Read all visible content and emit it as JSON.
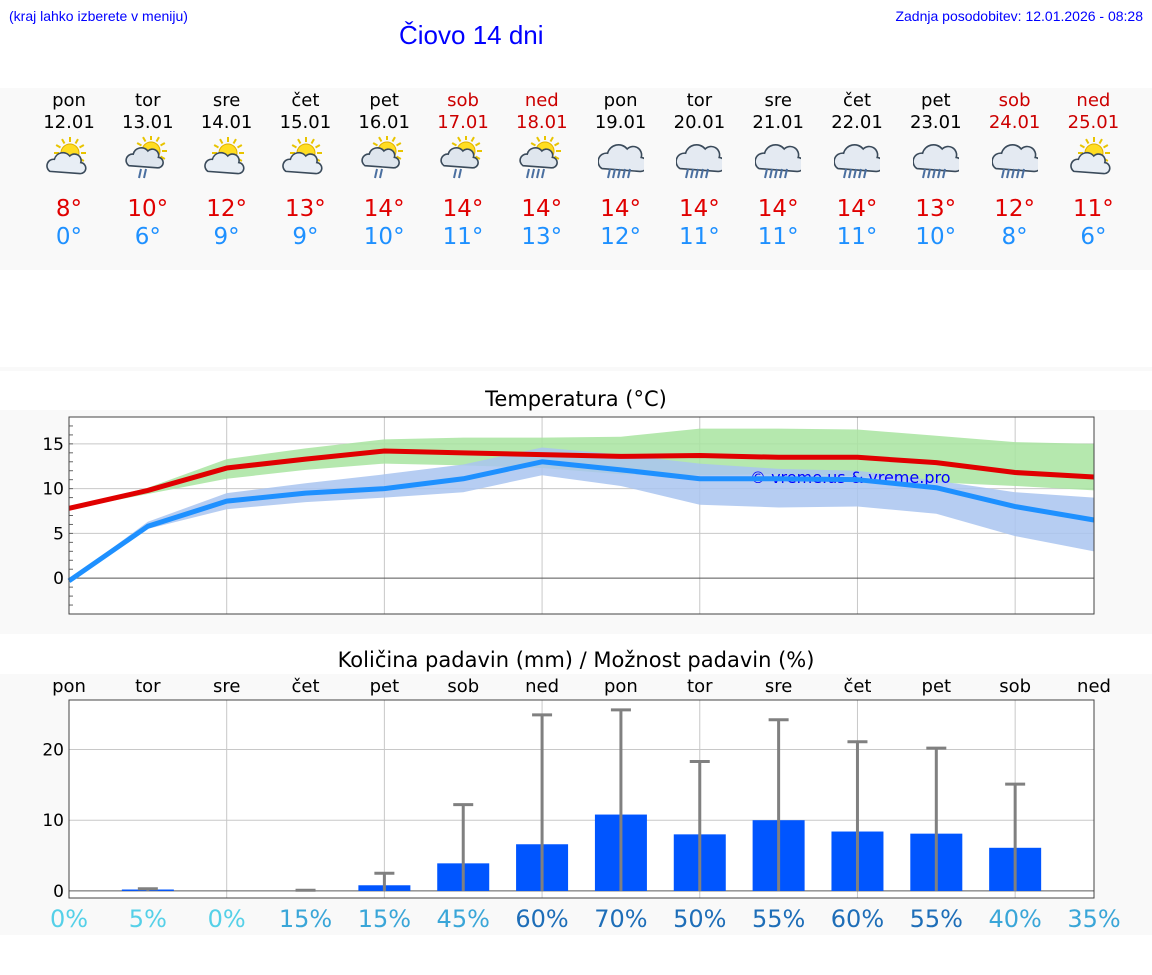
{
  "header": {
    "hint": "(kraj lahko izberete v meniju)",
    "updated": "Zadnja posodobitev: 12.01.2026 - 08:28",
    "title": "Čiovo 14 dni"
  },
  "forecast": {
    "days": [
      {
        "name": "pon",
        "date": "12.01",
        "weekend": false,
        "icon": "sun-cloud-icon",
        "tmax": "8°",
        "tmin": "0°"
      },
      {
        "name": "tor",
        "date": "13.01",
        "weekend": false,
        "icon": "sun-cloud-rain-icon",
        "tmax": "10°",
        "tmin": "6°"
      },
      {
        "name": "sre",
        "date": "14.01",
        "weekend": false,
        "icon": "sun-cloud-icon",
        "tmax": "12°",
        "tmin": "9°"
      },
      {
        "name": "čet",
        "date": "15.01",
        "weekend": false,
        "icon": "sun-cloud-icon",
        "tmax": "13°",
        "tmin": "9°"
      },
      {
        "name": "pet",
        "date": "16.01",
        "weekend": false,
        "icon": "sun-cloud-rain-icon",
        "tmax": "14°",
        "tmin": "10°"
      },
      {
        "name": "sob",
        "date": "17.01",
        "weekend": true,
        "icon": "sun-cloud-rain-icon",
        "tmax": "14°",
        "tmin": "11°"
      },
      {
        "name": "ned",
        "date": "18.01",
        "weekend": true,
        "icon": "sun-cloud-heavy-rain-icon",
        "tmax": "14°",
        "tmin": "13°"
      },
      {
        "name": "pon",
        "date": "19.01",
        "weekend": false,
        "icon": "cloud-rain-icon",
        "tmax": "14°",
        "tmin": "12°"
      },
      {
        "name": "tor",
        "date": "20.01",
        "weekend": false,
        "icon": "cloud-rain-icon",
        "tmax": "14°",
        "tmin": "11°"
      },
      {
        "name": "sre",
        "date": "21.01",
        "weekend": false,
        "icon": "cloud-rain-icon",
        "tmax": "14°",
        "tmin": "11°"
      },
      {
        "name": "čet",
        "date": "22.01",
        "weekend": false,
        "icon": "cloud-rain-icon",
        "tmax": "14°",
        "tmin": "11°"
      },
      {
        "name": "pet",
        "date": "23.01",
        "weekend": false,
        "icon": "cloud-rain-icon",
        "tmax": "13°",
        "tmin": "10°"
      },
      {
        "name": "sob",
        "date": "24.01",
        "weekend": true,
        "icon": "cloud-rain-icon",
        "tmax": "12°",
        "tmin": "8°"
      },
      {
        "name": "ned",
        "date": "25.01",
        "weekend": true,
        "icon": "sun-cloud-icon",
        "tmax": "11°",
        "tmin": "6°"
      }
    ]
  },
  "colors": {
    "max": "#e00000",
    "min": "#1e90ff",
    "weekend": "#cc0000",
    "title": "#0000ff",
    "maxBand": "#a8e4a0",
    "minBand": "#a9c4f0",
    "bar": "#0055ff",
    "errbar": "#808080"
  },
  "chart_data": [
    {
      "type": "line",
      "title": "Temperatura (°C)",
      "watermark": "© vreme.us & vreme.pro",
      "x": [
        0,
        1,
        2,
        3,
        4,
        5,
        6,
        7,
        8,
        9,
        10,
        11,
        12,
        13
      ],
      "ylim": [
        -4,
        18
      ],
      "yticks": [
        0,
        5,
        10,
        15
      ],
      "grid": true,
      "series": [
        {
          "name": "max",
          "values": [
            7.8,
            9.8,
            12.3,
            13.3,
            14.2,
            14.0,
            13.8,
            13.6,
            13.7,
            13.5,
            13.5,
            12.9,
            11.8,
            11.3
          ],
          "band_upper": [
            7.9,
            10.1,
            13.3,
            14.5,
            15.5,
            15.7,
            15.7,
            15.8,
            16.7,
            16.7,
            16.6,
            15.9,
            15.2,
            15.0
          ],
          "band_lower": [
            7.7,
            9.4,
            11.1,
            12.1,
            12.8,
            12.6,
            12.3,
            11.6,
            11.5,
            11.6,
            11.4,
            10.7,
            10.3,
            9.8
          ]
        },
        {
          "name": "min",
          "values": [
            -0.3,
            5.8,
            8.6,
            9.5,
            10.0,
            11.1,
            13.0,
            12.1,
            11.1,
            11.1,
            11.0,
            10.1,
            8.0,
            6.5
          ],
          "band_upper": [
            -0.2,
            6.3,
            9.5,
            10.6,
            11.6,
            12.7,
            14.6,
            13.8,
            12.8,
            12.2,
            12.0,
            10.9,
            9.6,
            9.0
          ],
          "band_lower": [
            -0.4,
            5.5,
            7.7,
            8.5,
            9.0,
            9.6,
            11.5,
            10.3,
            8.2,
            7.9,
            8.0,
            7.2,
            4.7,
            3.0
          ]
        }
      ]
    },
    {
      "type": "bar",
      "title": "Količina padavin (mm) / Možnost padavin (%)",
      "categories": [
        "pon",
        "tor",
        "sre",
        "čet",
        "pet",
        "sob",
        "ned",
        "pon",
        "tor",
        "sre",
        "čet",
        "pet",
        "sob",
        "ned"
      ],
      "ylim": [
        -1,
        27
      ],
      "yticks": [
        0,
        10,
        20
      ],
      "grid": true,
      "values": [
        0.0,
        0.2,
        0.0,
        0.0,
        0.8,
        3.9,
        6.6,
        10.8,
        8.0,
        10.0,
        8.4,
        8.1,
        6.1,
        0.0
      ],
      "error_max": [
        0.0,
        0.3,
        0.0,
        0.1,
        2.5,
        12.2,
        24.9,
        25.6,
        18.3,
        24.2,
        21.1,
        20.2,
        15.1,
        0.0
      ],
      "probability": [
        "0%",
        "5%",
        "0%",
        "15%",
        "15%",
        "45%",
        "60%",
        "70%",
        "50%",
        "55%",
        "60%",
        "55%",
        "40%",
        "35%"
      ],
      "probability_colors": [
        "#55d0e8",
        "#55d0e8",
        "#55d0e8",
        "#3aa6d8",
        "#3aa6d8",
        "#3aa6d8",
        "#1e6eb8",
        "#1e6eb8",
        "#1e6eb8",
        "#1e6eb8",
        "#1e6eb8",
        "#1e6eb8",
        "#3aa6d8",
        "#3aa6d8"
      ]
    }
  ]
}
